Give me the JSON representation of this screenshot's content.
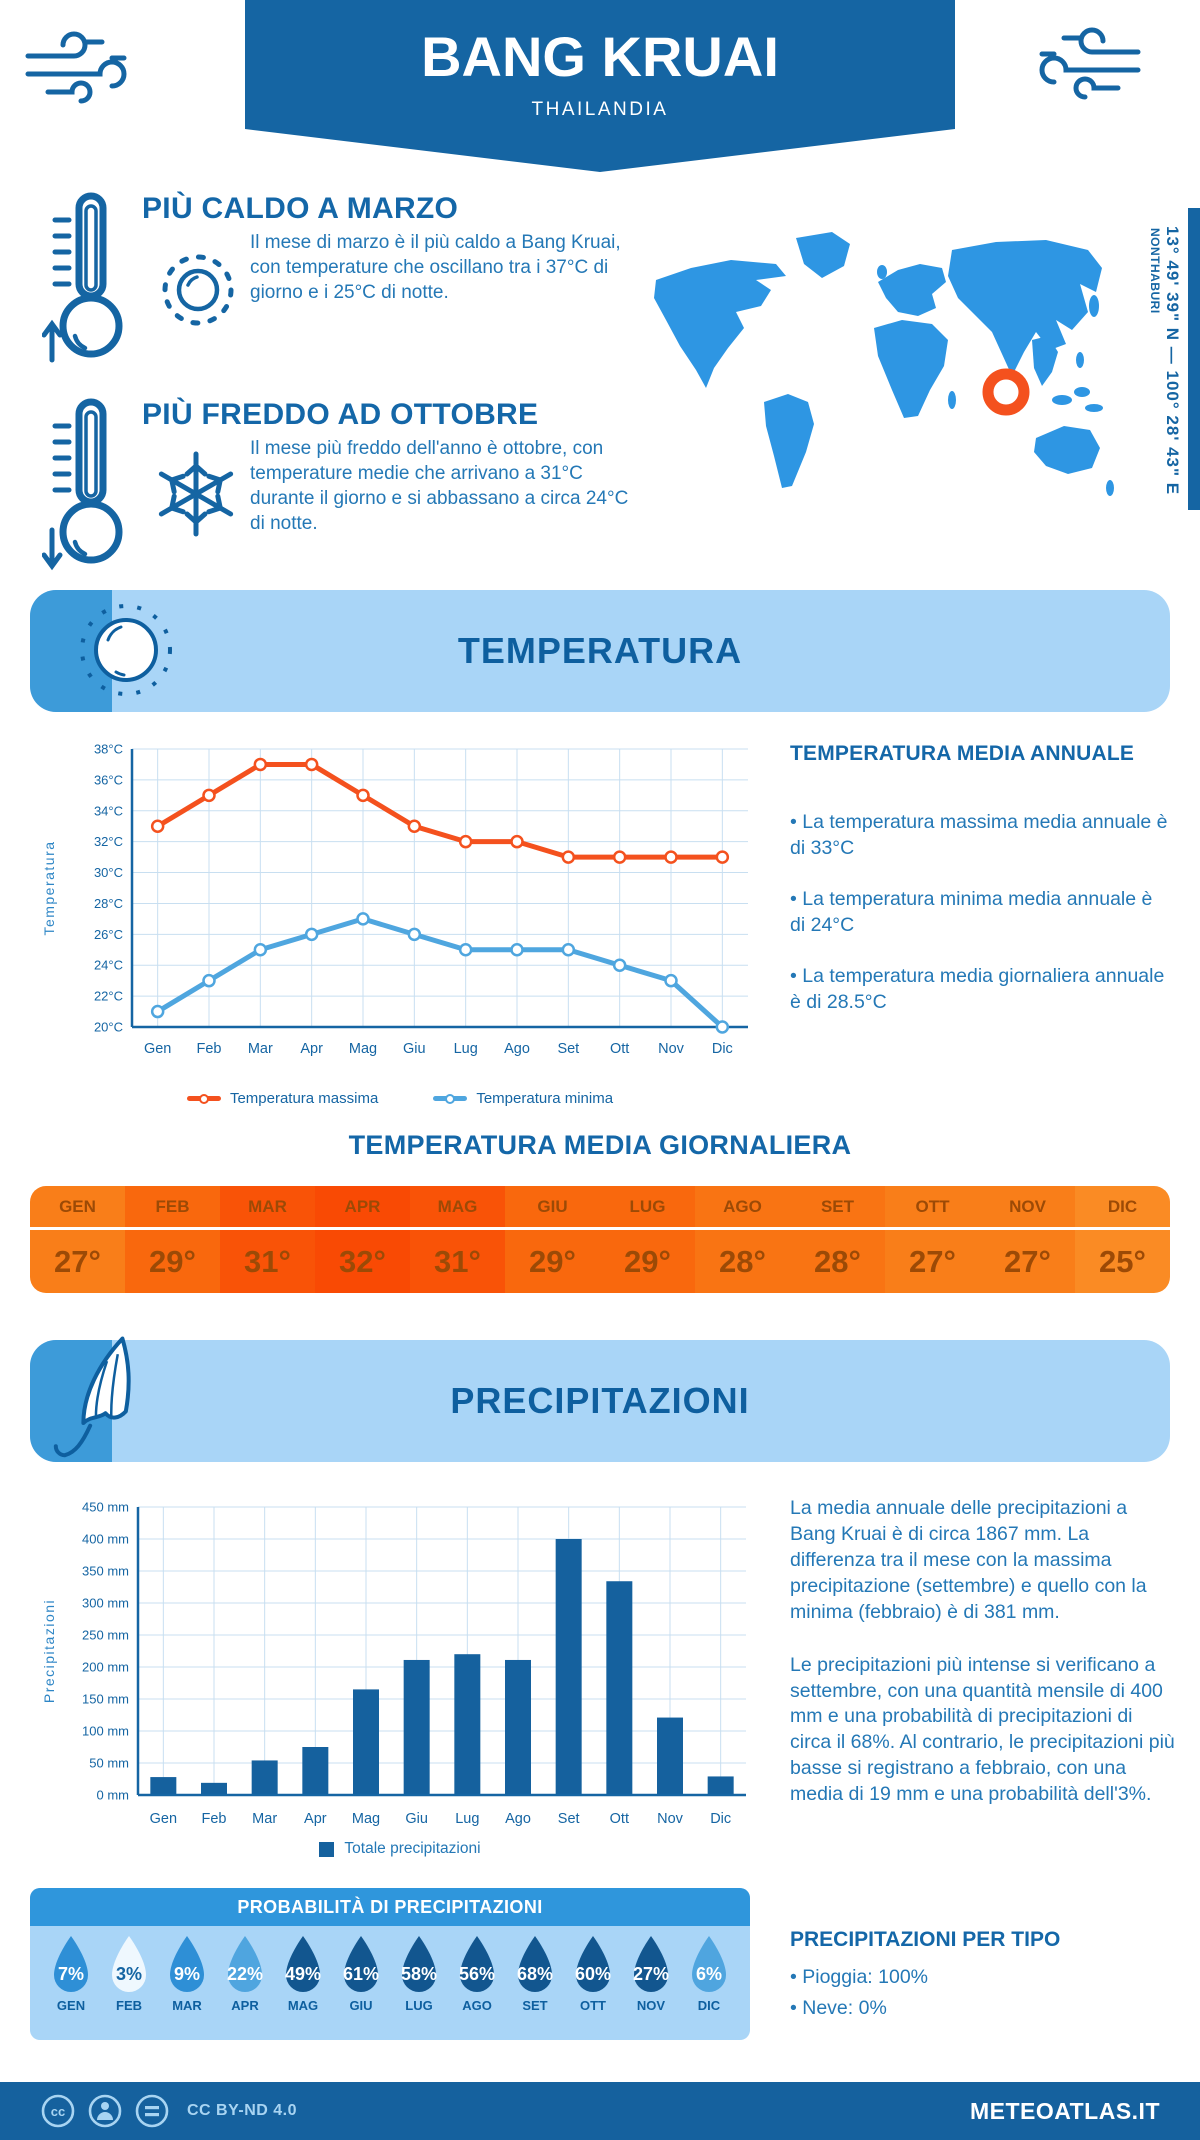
{
  "header": {
    "title": "BANG KRUAI",
    "subtitle": "THAILANDIA"
  },
  "intro": {
    "hot": {
      "title": "PIÙ CALDO A MARZO",
      "text": "Il mese di marzo è il più caldo a Bang Kruai, con temperature che oscillano tra i 37°C di giorno e i 25°C di notte."
    },
    "cold": {
      "title": "PIÙ FREDDO AD OTTOBRE",
      "text": "Il mese più freddo dell'anno è ottobre, con temperature medie che arrivano a 31°C durante il giorno e si abbassano a circa 24°C di notte."
    },
    "coordinates": "13° 49' 39\" N — 100° 28' 43\" E",
    "region": "NONTHABURI"
  },
  "temperature_section": {
    "banner_title": "TEMPERATURA",
    "annual": {
      "title": "TEMPERATURA MEDIA ANNUALE",
      "bullets": [
        "• La temperatura massima media annuale è di 33°C",
        "• La temperatura minima media annuale è di 24°C",
        "• La temperatura media giornaliera annuale è di 28.5°C"
      ]
    },
    "daily_title": "TEMPERATURA MEDIA GIORNALIERA",
    "monthly_table": {
      "months": [
        "GEN",
        "FEB",
        "MAR",
        "APR",
        "MAG",
        "GIU",
        "LUG",
        "AGO",
        "SET",
        "OTT",
        "NOV",
        "DIC"
      ],
      "values": [
        "27°",
        "29°",
        "31°",
        "32°",
        "31°",
        "29°",
        "29°",
        "28°",
        "28°",
        "27°",
        "27°",
        "25°"
      ],
      "cell_colors": [
        "#F97E19",
        "#F9680D",
        "#F95307",
        "#F94A04",
        "#F95307",
        "#F9680D",
        "#F9680D",
        "#F97413",
        "#F97413",
        "#F97E19",
        "#F97E19",
        "#FA8B24"
      ],
      "text_color": "#9C4A06"
    }
  },
  "precipitation_section": {
    "banner_title": "PRECIPITAZIONI",
    "text1": "La media annuale delle precipitazioni a Bang Kruai è di circa 1867 mm. La differenza tra il mese con la massima precipitazione (settembre) e quello con la minima (febbraio) è di 381 mm.",
    "text2": "Le precipitazioni più intense si verificano a settembre, con una quantità mensile di 400 mm e una probabilità di precipitazioni di circa il 68%. Al contrario, le precipitazioni più basse si registrano a febbraio, con una media di 19 mm e una probabilità dell'3%.",
    "probability": {
      "title": "PROBABILITÀ DI PRECIPITAZIONI",
      "months": [
        "GEN",
        "FEB",
        "MAR",
        "APR",
        "MAG",
        "GIU",
        "LUG",
        "AGO",
        "SET",
        "OTT",
        "NOV",
        "DIC"
      ],
      "values": [
        "7%",
        "3%",
        "9%",
        "22%",
        "49%",
        "61%",
        "58%",
        "56%",
        "68%",
        "60%",
        "27%",
        "6%"
      ],
      "drop_colors": [
        "#2E8FD6",
        "#EFF8FE",
        "#2E8FD6",
        "#4FA5DF",
        "#12568F",
        "#12568F",
        "#12568F",
        "#12568F",
        "#12568F",
        "#12568F",
        "#12568F",
        "#4FA5DF"
      ],
      "text_colors": [
        "#ffffff",
        "#1565A3",
        "#ffffff",
        "#ffffff",
        "#ffffff",
        "#ffffff",
        "#ffffff",
        "#ffffff",
        "#ffffff",
        "#ffffff",
        "#ffffff",
        "#ffffff"
      ]
    },
    "by_type": {
      "title": "PRECIPITAZIONI PER TIPO",
      "bullets": [
        "• Pioggia: 100%",
        "• Neve: 0%"
      ]
    }
  },
  "footer": {
    "license": "CC BY-ND 4.0",
    "site": "METEOATLAS.IT"
  },
  "chart_data": [
    {
      "type": "line",
      "categories": [
        "Gen",
        "Feb",
        "Mar",
        "Apr",
        "Mag",
        "Giu",
        "Lug",
        "Ago",
        "Set",
        "Ott",
        "Nov",
        "Dic"
      ],
      "series": [
        {
          "name": "Temperatura massima",
          "color": "#F4511E",
          "values": [
            33,
            35,
            37,
            37,
            35,
            33,
            32,
            32,
            31,
            31,
            31,
            31
          ]
        },
        {
          "name": "Temperatura minima",
          "color": "#4FA6DF",
          "values": [
            21,
            23,
            25,
            26,
            27,
            26,
            25,
            25,
            25,
            24,
            23,
            20
          ]
        }
      ],
      "ylabel": "Temperatura",
      "ylim": [
        20,
        38
      ],
      "ytick_step": 2,
      "ytick_suffix": "°C",
      "grid": true,
      "legend_position": "bottom"
    },
    {
      "type": "bar",
      "categories": [
        "Gen",
        "Feb",
        "Mar",
        "Apr",
        "Mag",
        "Giu",
        "Lug",
        "Ago",
        "Set",
        "Ott",
        "Nov",
        "Dic"
      ],
      "series": [
        {
          "name": "Totale precipitazioni",
          "color": "#15619E",
          "values": [
            28,
            19,
            54,
            75,
            165,
            211,
            220,
            211,
            400,
            334,
            121,
            29
          ]
        }
      ],
      "ylabel": "Precipitazioni",
      "ylim": [
        0,
        450
      ],
      "ytick_step": 50,
      "ytick_suffix": " mm",
      "grid": true,
      "legend_position": "bottom"
    }
  ]
}
